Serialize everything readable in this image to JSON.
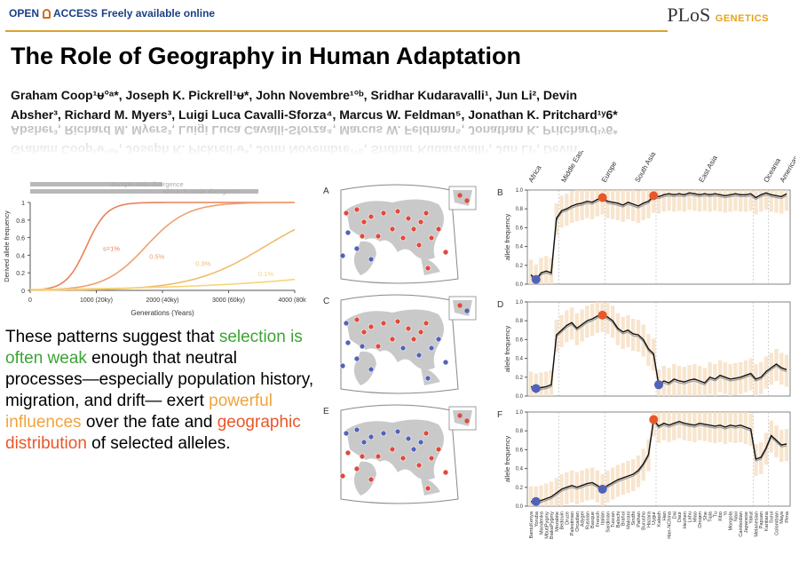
{
  "header": {
    "open_label": "OPEN",
    "access_label": "ACCESS",
    "free_label": "Freely available online",
    "journal_logo": "PLoS",
    "journal_sub": "GENETICS"
  },
  "paper": {
    "title": "The Role of Geography in Human Adaptation",
    "authors_line1": "Graham Coop¹ᵾ°ᵃ*, Joseph K. Pickrell¹ᵾ*, John Novembre¹°ᵇ, Sridhar Kudaravalli¹, Jun Li², Devin",
    "authors_line2": "Absher³, Richard M. Myers³, Luigi Luca Cavalli-Sforza⁴, Marcus W. Feldman⁵, Jonathan K. Pritchard¹ʸ6*"
  },
  "quote": {
    "p1": "These patterns suggest that ",
    "h1": "selection is often weak",
    "p2": " enough that neutral processes—especially population history, migration, and drift— exert ",
    "h2": "powerful influences",
    "p3": " over the fate and ",
    "h3": "geographic distribution",
    "p4": " of selected alleles."
  },
  "colors": {
    "green": "#3aa534",
    "orange": "#f0a43d",
    "red": "#e8572a",
    "tan": "#f6dfc2",
    "blue": "#4f63b8"
  },
  "chart_data": [
    {
      "type": "line",
      "xlabel": "Generations (Years)",
      "ylabel": "Derived allele frequency",
      "xlim": [
        0,
        4000
      ],
      "ylim": [
        0,
        1
      ],
      "x_ticks": [
        "0",
        "1000 (20ky)",
        "2000 (40ky)",
        "3000 (60ky)",
        "4000 (80ky)"
      ],
      "y_ticks": [
        "0",
        "0.2",
        "0.4",
        "0.6",
        "0.8",
        "1"
      ],
      "divergence_bars": [
        {
          "label": "Europe–Asia divergence",
          "x_end": 2000
        },
        {
          "label": "Africa–Eurasia divergence",
          "x_end": 3450
        }
      ],
      "series": [
        {
          "name": "s=1%",
          "color": "#e8825a",
          "midpoint": 850,
          "rate": 0.0065
        },
        {
          "name": "0.5%",
          "color": "#eea070",
          "midpoint": 1750,
          "rate": 0.0032
        },
        {
          "name": "0.3%",
          "color": "#f1bc6b",
          "midpoint": 3550,
          "rate": 0.0018
        },
        {
          "name": "0.1%",
          "color": "#f6d478",
          "midpoint": 7000,
          "rate": 0.00065
        }
      ]
    },
    {
      "type": "line",
      "panels": [
        "B",
        "D",
        "F"
      ],
      "ylabel": "allele frequency",
      "regions": [
        "Africa",
        "Middle East",
        "Europe",
        "South Asia",
        "East Asia",
        "Oceania",
        "Americas"
      ],
      "populations": [
        "BantuKenya",
        "Yoruba",
        "Mandenka",
        "MbutiPygmy",
        "BiakaPygmy",
        "Mozabite",
        "Bedouin",
        "Druze",
        "Palestinian",
        "Orcadian",
        "Adygei",
        "Russian",
        "Basque",
        "French",
        "Italian",
        "Sardinian",
        "Tuscan",
        "Balochi",
        "Brahui",
        "Makrani",
        "Sindhi",
        "Pathan",
        "Burusho",
        "Hazara",
        "Uygur",
        "Kalash",
        "Han",
        "Han-NChina",
        "Dai",
        "Daur",
        "Hezhen",
        "Lahu",
        "Miao",
        "Oroqen",
        "She",
        "Tujia",
        "Tu",
        "Xibo",
        "Yi",
        "Mongola",
        "Naxi",
        "Cambodian",
        "Japanese",
        "Yakut",
        "Melanesian",
        "Papuan",
        "Karitiana",
        "Surui",
        "Colombian",
        "Maya",
        "Pima"
      ],
      "y_ticks": [
        "0.0",
        "0.2",
        "0.4",
        "0.6",
        "0.8",
        "1.0"
      ],
      "panel_B": [
        0.1,
        0.05,
        0.12,
        0.14,
        0.12,
        0.7,
        0.78,
        0.8,
        0.83,
        0.85,
        0.86,
        0.88,
        0.87,
        0.9,
        0.92,
        0.88,
        0.87,
        0.86,
        0.84,
        0.87,
        0.85,
        0.83,
        0.86,
        0.88,
        0.94,
        0.93,
        0.95,
        0.96,
        0.95,
        0.96,
        0.95,
        0.97,
        0.96,
        0.95,
        0.96,
        0.95,
        0.96,
        0.95,
        0.94,
        0.95,
        0.96,
        0.95,
        0.95,
        0.96,
        0.92,
        0.95,
        0.97,
        0.95,
        0.94,
        0.93,
        0.96
      ],
      "panel_D": [
        0.1,
        0.08,
        0.09,
        0.1,
        0.12,
        0.65,
        0.7,
        0.75,
        0.78,
        0.72,
        0.76,
        0.8,
        0.82,
        0.85,
        0.86,
        0.84,
        0.8,
        0.72,
        0.68,
        0.7,
        0.66,
        0.65,
        0.6,
        0.5,
        0.45,
        0.12,
        0.16,
        0.14,
        0.18,
        0.16,
        0.15,
        0.17,
        0.18,
        0.16,
        0.14,
        0.2,
        0.18,
        0.22,
        0.2,
        0.18,
        0.19,
        0.2,
        0.22,
        0.24,
        0.18,
        0.2,
        0.26,
        0.3,
        0.34,
        0.3,
        0.28
      ],
      "panel_F": [
        0.05,
        0.05,
        0.06,
        0.08,
        0.1,
        0.14,
        0.18,
        0.2,
        0.22,
        0.2,
        0.22,
        0.24,
        0.25,
        0.22,
        0.18,
        0.22,
        0.25,
        0.28,
        0.3,
        0.32,
        0.34,
        0.38,
        0.45,
        0.55,
        0.92,
        0.85,
        0.88,
        0.86,
        0.88,
        0.9,
        0.88,
        0.87,
        0.86,
        0.88,
        0.87,
        0.86,
        0.85,
        0.86,
        0.84,
        0.86,
        0.85,
        0.86,
        0.84,
        0.82,
        0.5,
        0.52,
        0.62,
        0.75,
        0.7,
        0.65,
        0.66
      ],
      "highlights": {
        "panel_B": [
          {
            "index": 1,
            "color": "#4f63b8"
          },
          {
            "index": 14,
            "color": "#e8572a"
          },
          {
            "index": 24,
            "color": "#e8572a"
          }
        ],
        "panel_D": [
          {
            "index": 1,
            "color": "#4f63b8"
          },
          {
            "index": 14,
            "color": "#e8572a"
          },
          {
            "index": 25,
            "color": "#4f63b8"
          }
        ],
        "panel_F": [
          {
            "index": 1,
            "color": "#4f63b8"
          },
          {
            "index": 14,
            "color": "#4f63b8"
          },
          {
            "index": 24,
            "color": "#e8572a"
          }
        ]
      }
    }
  ],
  "maps": [
    {
      "label": "A"
    },
    {
      "label": "C"
    },
    {
      "label": "E"
    }
  ],
  "panel_labels": [
    "B",
    "D",
    "F"
  ]
}
